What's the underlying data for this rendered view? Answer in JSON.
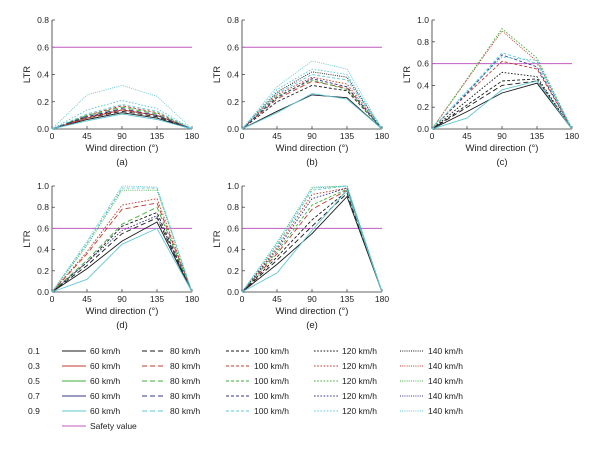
{
  "chart_data": [
    {
      "type": "line",
      "panel": "(a)",
      "xlabel": "Wind direction (°)",
      "ylabel": "LTR",
      "xticks": [
        0,
        45,
        90,
        135,
        180
      ],
      "yticks": [
        0.0,
        0.2,
        0.4,
        0.6,
        0.8
      ],
      "xlim": [
        0,
        180
      ],
      "ylim": [
        0,
        0.8
      ],
      "x": [
        0,
        45,
        90,
        135,
        180
      ],
      "series": [
        {
          "group": "0.1",
          "speed": "60 km/h",
          "values": [
            0,
            0.07,
            0.12,
            0.08,
            0
          ]
        },
        {
          "group": "0.1",
          "speed": "80 km/h",
          "values": [
            0,
            0.08,
            0.13,
            0.09,
            0
          ]
        },
        {
          "group": "0.1",
          "speed": "100 km/h",
          "values": [
            0,
            0.09,
            0.14,
            0.1,
            0
          ]
        },
        {
          "group": "0.3",
          "speed": "60 km/h",
          "values": [
            0,
            0.08,
            0.14,
            0.1,
            0
          ]
        },
        {
          "group": "0.3",
          "speed": "100 km/h",
          "values": [
            0,
            0.1,
            0.17,
            0.12,
            0
          ]
        },
        {
          "group": "0.5",
          "speed": "80 km/h",
          "values": [
            0,
            0.1,
            0.16,
            0.11,
            0
          ]
        },
        {
          "group": "0.7",
          "speed": "80 km/h",
          "values": [
            0,
            0.09,
            0.15,
            0.1,
            0
          ]
        },
        {
          "group": "0.9",
          "speed": "60 km/h",
          "values": [
            0,
            0.06,
            0.11,
            0.07,
            0
          ]
        },
        {
          "group": "0.9",
          "speed": "100 km/h",
          "values": [
            0,
            0.11,
            0.18,
            0.13,
            0
          ]
        },
        {
          "group": "0.9",
          "speed": "120 km/h",
          "values": [
            0,
            0.14,
            0.21,
            0.15,
            0
          ]
        },
        {
          "group": "0.9",
          "speed": "140 km/h",
          "values": [
            0,
            0.25,
            0.32,
            0.24,
            0
          ]
        }
      ],
      "safety_value": 0.6,
      "caption": "(a)"
    },
    {
      "type": "line",
      "panel": "(b)",
      "xlabel": "Wind direction (°)",
      "ylabel": "LTR",
      "xticks": [
        0,
        45,
        90,
        135,
        180
      ],
      "yticks": [
        0.0,
        0.2,
        0.4,
        0.6,
        0.8
      ],
      "xlim": [
        0,
        180
      ],
      "ylim": [
        0,
        0.8
      ],
      "x": [
        0,
        45,
        90,
        135,
        180
      ],
      "series": [
        {
          "group": "0.1",
          "speed": "60 km/h",
          "values": [
            0,
            0.13,
            0.25,
            0.23,
            0
          ]
        },
        {
          "group": "0.1",
          "speed": "100 km/h",
          "values": [
            0,
            0.2,
            0.32,
            0.28,
            0
          ]
        },
        {
          "group": "0.1",
          "speed": "140 km/h",
          "values": [
            0,
            0.27,
            0.42,
            0.38,
            0
          ]
        },
        {
          "group": "0.3",
          "speed": "80 km/h",
          "values": [
            0,
            0.22,
            0.35,
            0.3,
            0
          ]
        },
        {
          "group": "0.3",
          "speed": "120 km/h",
          "values": [
            0,
            0.25,
            0.38,
            0.33,
            0
          ]
        },
        {
          "group": "0.5",
          "speed": "100 km/h",
          "values": [
            0,
            0.24,
            0.36,
            0.29,
            0
          ]
        },
        {
          "group": "0.7",
          "speed": "100 km/h",
          "values": [
            0,
            0.23,
            0.37,
            0.31,
            0
          ]
        },
        {
          "group": "0.9",
          "speed": "60 km/h",
          "values": [
            0,
            0.12,
            0.26,
            0.22,
            0
          ]
        },
        {
          "group": "0.9",
          "speed": "100 km/h",
          "values": [
            0,
            0.26,
            0.4,
            0.36,
            0
          ]
        },
        {
          "group": "0.9",
          "speed": "120 km/h",
          "values": [
            0,
            0.29,
            0.44,
            0.4,
            0
          ]
        },
        {
          "group": "0.9",
          "speed": "140 km/h",
          "values": [
            0,
            0.31,
            0.5,
            0.44,
            0
          ]
        }
      ],
      "safety_value": 0.6,
      "caption": "(b)"
    },
    {
      "type": "line",
      "panel": "(c)",
      "xlabel": "Wind direction (°)",
      "ylabel": "LTR",
      "xticks": [
        0,
        45,
        90,
        135,
        180
      ],
      "yticks": [
        0.0,
        0.2,
        0.4,
        0.6,
        0.8,
        1.0
      ],
      "xlim": [
        0,
        180
      ],
      "ylim": [
        0,
        1.0
      ],
      "x": [
        0,
        45,
        90,
        135,
        180
      ],
      "series": [
        {
          "group": "0.1",
          "speed": "60 km/h",
          "values": [
            0,
            0.16,
            0.33,
            0.42,
            0
          ]
        },
        {
          "group": "0.1",
          "speed": "80 km/h",
          "values": [
            0,
            0.2,
            0.4,
            0.44,
            0
          ]
        },
        {
          "group": "0.1",
          "speed": "100 km/h",
          "values": [
            0,
            0.22,
            0.44,
            0.46,
            0
          ]
        },
        {
          "group": "0.1",
          "speed": "120 km/h",
          "values": [
            0,
            0.26,
            0.52,
            0.48,
            0
          ]
        },
        {
          "group": "0.3",
          "speed": "100 km/h",
          "values": [
            0,
            0.32,
            0.62,
            0.55,
            0
          ]
        },
        {
          "group": "0.3",
          "speed": "140 km/h",
          "values": [
            0,
            0.45,
            0.9,
            0.62,
            0
          ]
        },
        {
          "group": "0.5",
          "speed": "120 km/h",
          "values": [
            0,
            0.46,
            0.92,
            0.65,
            0
          ]
        },
        {
          "group": "0.7",
          "speed": "100 km/h",
          "values": [
            0,
            0.33,
            0.68,
            0.57,
            0
          ]
        },
        {
          "group": "0.9",
          "speed": "60 km/h",
          "values": [
            0,
            0.1,
            0.36,
            0.44,
            0
          ]
        },
        {
          "group": "0.9",
          "speed": "100 km/h",
          "values": [
            0,
            0.34,
            0.7,
            0.6,
            0
          ]
        },
        {
          "group": "0.9",
          "speed": "120 km/h",
          "values": [
            0,
            0.35,
            0.66,
            0.63,
            0
          ]
        }
      ],
      "safety_value": 0.6,
      "caption": "(c)"
    },
    {
      "type": "line",
      "panel": "(d)",
      "xlabel": "Wind direction (°)",
      "ylabel": "LTR",
      "xticks": [
        0,
        45,
        90,
        135,
        180
      ],
      "yticks": [
        0.0,
        0.2,
        0.4,
        0.6,
        0.8,
        1.0
      ],
      "xlim": [
        0,
        180
      ],
      "ylim": [
        0,
        1.0
      ],
      "x": [
        0,
        45,
        90,
        135,
        180
      ],
      "series": [
        {
          "group": "0.1",
          "speed": "60 km/h",
          "values": [
            0,
            0.22,
            0.48,
            0.66,
            0
          ]
        },
        {
          "group": "0.1",
          "speed": "80 km/h",
          "values": [
            0,
            0.25,
            0.55,
            0.7,
            0
          ]
        },
        {
          "group": "0.1",
          "speed": "100 km/h",
          "values": [
            0,
            0.28,
            0.62,
            0.75,
            0
          ]
        },
        {
          "group": "0.3",
          "speed": "80 km/h",
          "values": [
            0,
            0.36,
            0.78,
            0.84,
            0
          ]
        },
        {
          "group": "0.3",
          "speed": "120 km/h",
          "values": [
            0,
            0.38,
            0.82,
            0.88,
            0
          ]
        },
        {
          "group": "0.5",
          "speed": "80 km/h",
          "values": [
            0,
            0.3,
            0.64,
            0.8,
            0
          ]
        },
        {
          "group": "0.5",
          "speed": "140 km/h",
          "values": [
            0,
            0.44,
            0.96,
            0.96,
            0
          ]
        },
        {
          "group": "0.7",
          "speed": "120 km/h",
          "values": [
            0,
            0.28,
            0.58,
            0.72,
            0
          ]
        },
        {
          "group": "0.9",
          "speed": "60 km/h",
          "values": [
            0,
            0.12,
            0.45,
            0.6,
            0
          ]
        },
        {
          "group": "0.9",
          "speed": "100 km/h",
          "values": [
            0,
            0.46,
            0.98,
            0.98,
            0
          ]
        },
        {
          "group": "0.9",
          "speed": "140 km/h",
          "values": [
            0,
            0.48,
            1.0,
            0.99,
            0
          ]
        }
      ],
      "safety_value": 0.6,
      "caption": "(d)"
    },
    {
      "type": "line",
      "panel": "(e)",
      "xlabel": "Wind direction (°)",
      "ylabel": "LTR",
      "xticks": [
        0,
        45,
        90,
        135,
        180
      ],
      "yticks": [
        0.0,
        0.2,
        0.4,
        0.6,
        0.8,
        1.0
      ],
      "xlim": [
        0,
        180
      ],
      "ylim": [
        0,
        1.0
      ],
      "x": [
        0,
        45,
        90,
        135,
        180
      ],
      "series": [
        {
          "group": "0.1",
          "speed": "60 km/h",
          "values": [
            0,
            0.26,
            0.55,
            0.9,
            0
          ]
        },
        {
          "group": "0.1",
          "speed": "80 km/h",
          "values": [
            0,
            0.3,
            0.62,
            0.93,
            0
          ]
        },
        {
          "group": "0.1",
          "speed": "100 km/h",
          "values": [
            0,
            0.33,
            0.68,
            0.95,
            0
          ]
        },
        {
          "group": "0.3",
          "speed": "80 km/h",
          "values": [
            0,
            0.36,
            0.78,
            0.96,
            0
          ]
        },
        {
          "group": "0.3",
          "speed": "120 km/h",
          "values": [
            0,
            0.42,
            0.92,
            0.98,
            0
          ]
        },
        {
          "group": "0.5",
          "speed": "100 km/h",
          "values": [
            0,
            0.38,
            0.82,
            0.97,
            0
          ]
        },
        {
          "group": "0.5",
          "speed": "140 km/h",
          "values": [
            0,
            0.46,
            0.98,
            1.0,
            0
          ]
        },
        {
          "group": "0.7",
          "speed": "120 km/h",
          "values": [
            0,
            0.4,
            0.88,
            0.98,
            0
          ]
        },
        {
          "group": "0.9",
          "speed": "60 km/h",
          "values": [
            0,
            0.18,
            0.58,
            0.96,
            0
          ]
        },
        {
          "group": "0.9",
          "speed": "100 km/h",
          "values": [
            0,
            0.44,
            0.96,
            1.0,
            0
          ]
        },
        {
          "group": "0.9",
          "speed": "140 km/h",
          "values": [
            0,
            0.47,
            0.99,
            1.0,
            0
          ]
        }
      ],
      "safety_value": 0.6,
      "caption": "(e)"
    }
  ],
  "legend": {
    "groups": [
      "0.1",
      "0.3",
      "0.5",
      "0.7",
      "0.9"
    ],
    "speeds": [
      "60 km/h",
      "80 km/h",
      "100 km/h",
      "120 km/h",
      "140 km/h"
    ],
    "safety_label": "Safety value"
  },
  "colors": {
    "0.1": "#1a1a1a",
    "0.3": "#c0392b",
    "0.5": "#3fae3a",
    "0.7": "#34368a",
    "0.9": "#5ec7d6",
    "safety": "#c05bc0",
    "axis": "#333333"
  },
  "dash_styles": {
    "60 km/h": "solid",
    "80 km/h": "dashed",
    "100 km/h": "short-dashed",
    "120 km/h": "dotted",
    "140 km/h": "fine-dotted"
  }
}
